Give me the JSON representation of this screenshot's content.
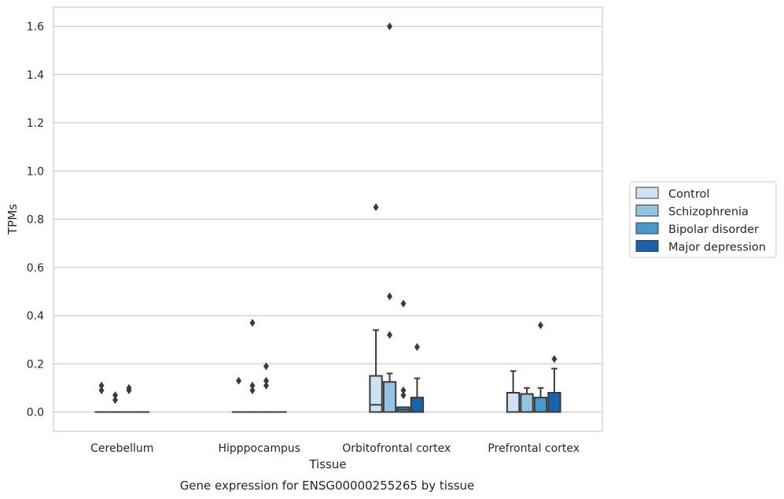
{
  "chart_data": {
    "type": "box",
    "title": "",
    "caption": "Gene expression for ENSG00000255265 by tissue",
    "xlabel": "Tissue",
    "ylabel": "TPMs",
    "ylim": [
      -0.08,
      1.68
    ],
    "yticks": [
      0.0,
      0.2,
      0.4,
      0.6,
      0.8,
      1.0,
      1.2,
      1.4,
      1.6
    ],
    "ytick_labels": [
      "0.0",
      "0.2",
      "0.4",
      "0.6",
      "0.8",
      "1.0",
      "1.2",
      "1.4",
      "1.6"
    ],
    "grid": true,
    "legend_position": "right",
    "categories": [
      "Cerebellum",
      "Hipppocampus",
      "Orbitofrontal cortex",
      "Prefrontal cortex"
    ],
    "series": [
      {
        "name": "Control",
        "color": "#d0e1f2",
        "boxes": [
          {
            "q1": 0,
            "median": 0,
            "q3": 0,
            "whisker_low": 0,
            "whisker_high": 0,
            "outliers": [
              0.09,
              0.11
            ]
          },
          {
            "q1": 0,
            "median": 0,
            "q3": 0,
            "whisker_low": 0,
            "whisker_high": 0,
            "outliers": [
              0.13
            ]
          },
          {
            "q1": 0,
            "median": 0.03,
            "q3": 0.15,
            "whisker_low": 0,
            "whisker_high": 0.34,
            "outliers": [
              0.85
            ]
          },
          {
            "q1": 0,
            "median": 0,
            "q3": 0.08,
            "whisker_low": 0,
            "whisker_high": 0.17,
            "outliers": []
          }
        ]
      },
      {
        "name": "Schizophrenia",
        "color": "#94c4df",
        "boxes": [
          {
            "q1": 0,
            "median": 0,
            "q3": 0,
            "whisker_low": 0,
            "whisker_high": 0,
            "outliers": [
              0.05,
              0.07
            ]
          },
          {
            "q1": 0,
            "median": 0,
            "q3": 0,
            "whisker_low": 0,
            "whisker_high": 0,
            "outliers": [
              0.09,
              0.11,
              0.37
            ]
          },
          {
            "q1": 0,
            "median": 0,
            "q3": 0.125,
            "whisker_low": 0,
            "whisker_high": 0.16,
            "outliers": [
              0.32,
              0.48,
              1.6
            ]
          },
          {
            "q1": 0,
            "median": 0,
            "q3": 0.075,
            "whisker_low": 0,
            "whisker_high": 0.1,
            "outliers": []
          }
        ]
      },
      {
        "name": "Bipolar disorder",
        "color": "#4a98c9",
        "boxes": [
          {
            "q1": 0,
            "median": 0,
            "q3": 0,
            "whisker_low": 0,
            "whisker_high": 0,
            "outliers": [
              0.09,
              0.1
            ]
          },
          {
            "q1": 0,
            "median": 0,
            "q3": 0,
            "whisker_low": 0,
            "whisker_high": 0,
            "outliers": [
              0.11,
              0.13,
              0.19
            ]
          },
          {
            "q1": 0,
            "median": 0.01,
            "q3": 0.02,
            "whisker_low": 0,
            "whisker_high": 0.02,
            "outliers": [
              0.07,
              0.09,
              0.45
            ]
          },
          {
            "q1": 0,
            "median": 0,
            "q3": 0.06,
            "whisker_low": 0,
            "whisker_high": 0.1,
            "outliers": [
              0.36
            ]
          }
        ]
      },
      {
        "name": "Major depression",
        "color": "#1764ab",
        "boxes": [
          {
            "q1": 0,
            "median": 0,
            "q3": 0,
            "whisker_low": 0,
            "whisker_high": 0,
            "outliers": []
          },
          {
            "q1": 0,
            "median": 0,
            "q3": 0,
            "whisker_low": 0,
            "whisker_high": 0,
            "outliers": []
          },
          {
            "q1": 0,
            "median": 0,
            "q3": 0.06,
            "whisker_low": 0,
            "whisker_high": 0.14,
            "outliers": [
              0.27
            ]
          },
          {
            "q1": 0,
            "median": 0,
            "q3": 0.08,
            "whisker_low": 0,
            "whisker_high": 0.18,
            "outliers": [
              0.22
            ]
          }
        ]
      }
    ]
  }
}
